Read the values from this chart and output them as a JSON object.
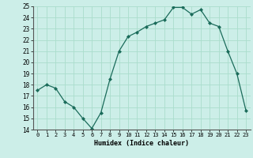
{
  "x": [
    0,
    1,
    2,
    3,
    4,
    5,
    6,
    7,
    8,
    9,
    10,
    11,
    12,
    13,
    14,
    15,
    16,
    17,
    18,
    19,
    20,
    21,
    22,
    23
  ],
  "y": [
    17.5,
    18.0,
    17.7,
    16.5,
    16.0,
    15.0,
    14.1,
    15.5,
    18.5,
    21.0,
    22.3,
    22.7,
    23.2,
    23.5,
    23.8,
    24.9,
    24.9,
    24.3,
    24.7,
    23.5,
    23.2,
    21.0,
    19.0,
    15.7
  ],
  "xlabel": "Humidex (Indice chaleur)",
  "ylim": [
    14,
    25
  ],
  "xlim": [
    -0.5,
    23.5
  ],
  "yticks": [
    14,
    15,
    16,
    17,
    18,
    19,
    20,
    21,
    22,
    23,
    24,
    25
  ],
  "xticks": [
    0,
    1,
    2,
    3,
    4,
    5,
    6,
    7,
    8,
    9,
    10,
    11,
    12,
    13,
    14,
    15,
    16,
    17,
    18,
    19,
    20,
    21,
    22,
    23
  ],
  "line_color": "#1a6b5a",
  "marker_color": "#1a6b5a",
  "bg_color": "#cceee8",
  "grid_color": "#aaddcc"
}
